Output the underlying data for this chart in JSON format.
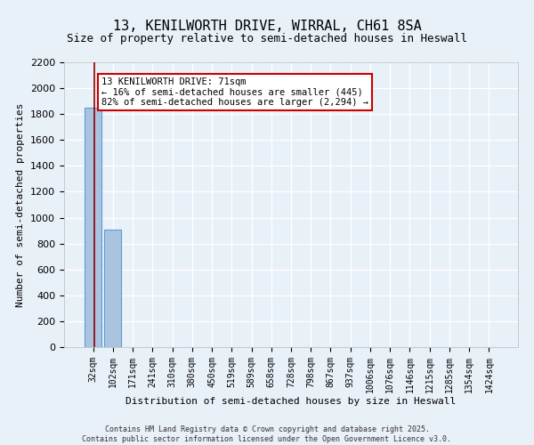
{
  "title_line1": "13, KENILWORTH DRIVE, WIRRAL, CH61 8SA",
  "title_line2": "Size of property relative to semi-detached houses in Heswall",
  "xlabel": "Distribution of semi-detached houses by size in Heswall",
  "ylabel": "Number of semi-detached properties",
  "categories": [
    "32sqm",
    "102sqm",
    "171sqm",
    "241sqm",
    "310sqm",
    "380sqm",
    "450sqm",
    "519sqm",
    "589sqm",
    "658sqm",
    "728sqm",
    "798sqm",
    "867sqm",
    "937sqm",
    "1006sqm",
    "1076sqm",
    "1146sqm",
    "1215sqm",
    "1285sqm",
    "1354sqm",
    "1424sqm"
  ],
  "bar_heights": [
    1850,
    910,
    0,
    0,
    0,
    0,
    0,
    0,
    0,
    0,
    0,
    0,
    0,
    0,
    0,
    0,
    0,
    0,
    0,
    0,
    0
  ],
  "bar_color": "#aac4e0",
  "bar_edgecolor": "#5b9bd5",
  "ylim": [
    0,
    2200
  ],
  "yticks": [
    0,
    200,
    400,
    600,
    800,
    1000,
    1200,
    1400,
    1600,
    1800,
    2000,
    2200
  ],
  "property_size_sqm": 71,
  "vline_color": "#8b0000",
  "annotation_title": "13 KENILWORTH DRIVE: 71sqm",
  "annotation_line2": "← 16% of semi-detached houses are smaller (445)",
  "annotation_line3": "82% of semi-detached houses are larger (2,294) →",
  "annotation_box_color": "#ffffff",
  "annotation_box_edgecolor": "#cc0000",
  "footer_line1": "Contains HM Land Registry data © Crown copyright and database right 2025.",
  "footer_line2": "Contains public sector information licensed under the Open Government Licence v3.0.",
  "background_color": "#e8f0f8",
  "grid_color": "#ffffff",
  "title_fontsize": 11,
  "subtitle_fontsize": 9,
  "tick_fontsize": 7,
  "ylabel_fontsize": 8,
  "xlabel_fontsize": 8,
  "annotation_fontsize": 7.5,
  "footer_fontsize": 6
}
